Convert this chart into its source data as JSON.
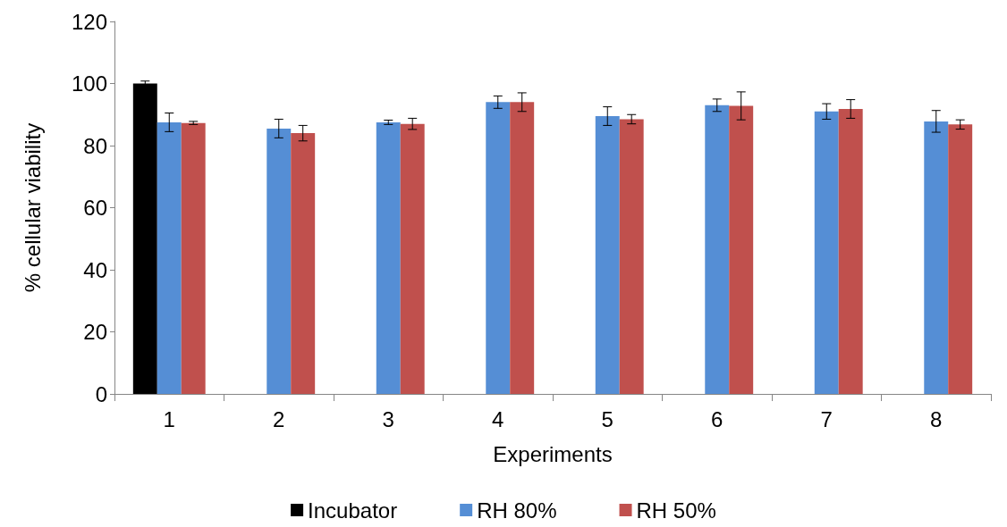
{
  "chart_data": {
    "type": "bar",
    "xlabel": "Experiments",
    "ylabel": "% cellular viability",
    "categories": [
      "1",
      "2",
      "3",
      "4",
      "5",
      "6",
      "7",
      "8"
    ],
    "series": [
      {
        "name": "Incubator",
        "color": "#000000",
        "values": [
          100,
          null,
          null,
          null,
          null,
          null,
          null,
          null
        ],
        "errors": [
          0.8,
          null,
          null,
          null,
          null,
          null,
          null,
          null
        ]
      },
      {
        "name": "RH 80%",
        "color": "#558ed5",
        "values": [
          87.5,
          85.5,
          87.5,
          94,
          89.5,
          93,
          91,
          87.8
        ],
        "errors": [
          3,
          3,
          0.7,
          2,
          3,
          2,
          2.5,
          3.5
        ]
      },
      {
        "name": "RH 50%",
        "color": "#c0504d",
        "values": [
          87.3,
          84,
          87,
          94,
          88.5,
          92.8,
          91.8,
          86.8
        ],
        "errors": [
          0.5,
          2.5,
          1.8,
          3,
          1.5,
          4.5,
          3,
          1.5
        ]
      }
    ],
    "ylim": [
      0,
      120
    ],
    "yticks": [
      0,
      20,
      40,
      60,
      80,
      100,
      120
    ],
    "grid": false,
    "legend": "bottom"
  }
}
